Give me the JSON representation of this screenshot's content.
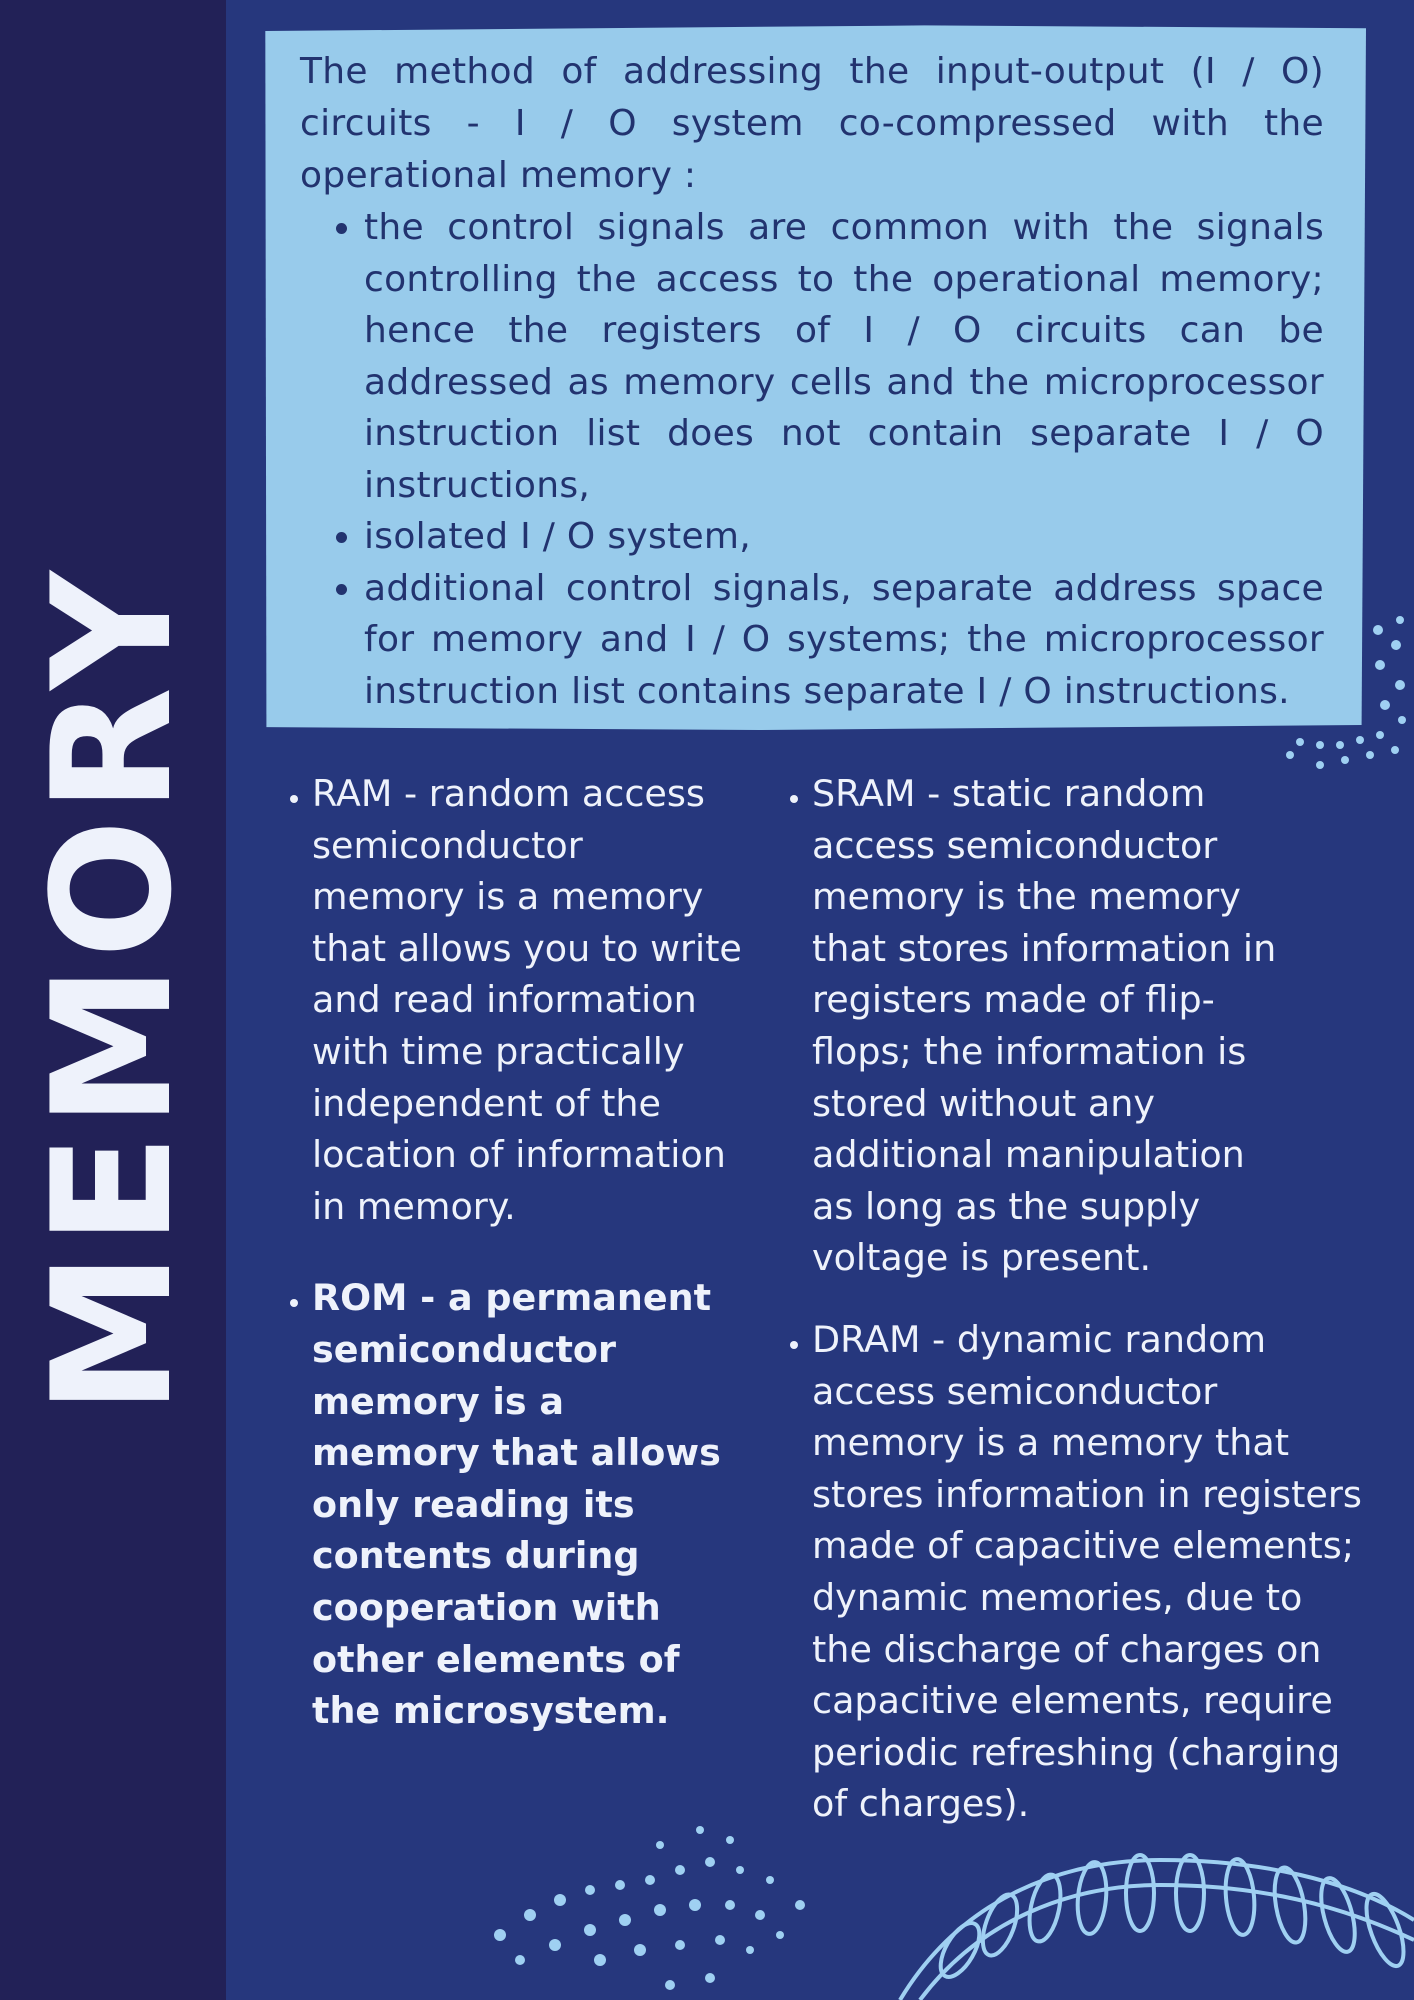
{
  "title": "MEMORY",
  "panel": {
    "intro": "The method of addressing the input-output (I / O) circuits - I / O system co-compressed with the operational memory :",
    "items": [
      "the control signals are common with the signals controlling the access to the operational memory; hence the registers of I / O circuits can be addressed as memory cells and the microprocessor instruction list does not contain separate I / O instructions,",
      "isolated I / O system,",
      "additional control signals, separate address space for memory and I / O systems; the microprocessor instruction list contains separate I / O instructions."
    ]
  },
  "left_column": [
    "RAM - random access semiconductor memory is a memory that allows you to write and read information with time practically independent of the location of information in memory.",
    "ROM - a permanent semiconductor memory is a memory that allows only reading its contents during cooperation with other elements of the microsystem."
  ],
  "right_column": [
    "SRAM - static random access semiconductor memory is the memory that stores information in registers made of flip-flops; the information is stored without any additional manipulation as long as the supply voltage is present.",
    "DRAM - dynamic random access semiconductor memory is a memory that stores information in registers made of capacitive elements; dynamic memories, due to the discharge of charges on capacitive elements, require periodic refreshing (charging of charges)."
  ],
  "colors": {
    "background": "#26377d",
    "sidebar": "#222157",
    "panel": "#98cbeb",
    "accent_dots": "#9fd0f2"
  }
}
